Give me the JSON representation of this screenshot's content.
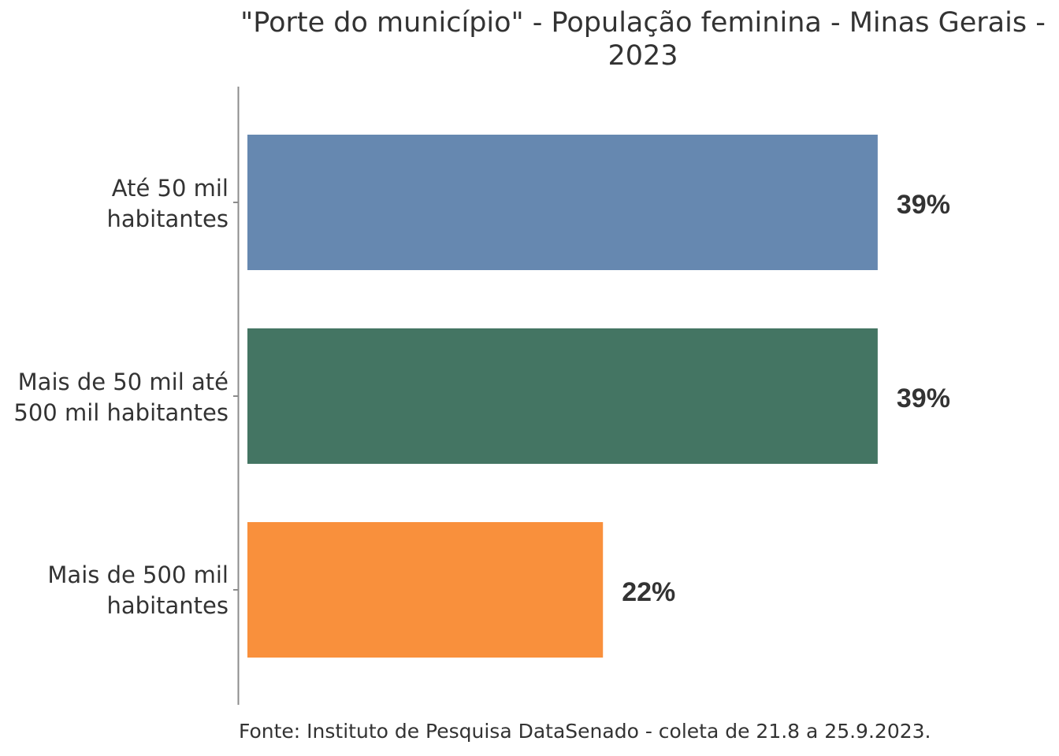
{
  "chart_data": {
    "type": "bar",
    "orientation": "horizontal",
    "title_lines": [
      "\"Porte do município\" - População feminina - Minas Gerais -",
      "2023"
    ],
    "categories": [
      {
        "lines": [
          "Até 50 mil",
          "habitantes"
        ]
      },
      {
        "lines": [
          "Mais de 50 mil até",
          "500 mil habitantes"
        ]
      },
      {
        "lines": [
          "Mais de 500 mil",
          "habitantes"
        ]
      }
    ],
    "values": [
      39,
      39,
      22
    ],
    "value_labels": [
      "39%",
      "39%",
      "22%"
    ],
    "colors": [
      "#6688B0",
      "#447563",
      "#F9903C"
    ],
    "xlim": [
      0,
      49
    ],
    "xlabel": "",
    "ylabel": "",
    "grid": false,
    "legend": "none",
    "source": "Fonte: Instituto de Pesquisa DataSenado - coleta de 21.8 a 25.9.2023."
  }
}
